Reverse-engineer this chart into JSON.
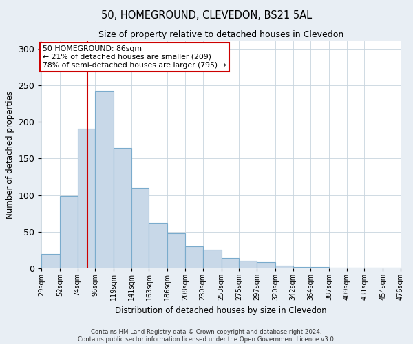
{
  "title": "50, HOMEGROUND, CLEVEDON, BS21 5AL",
  "subtitle": "Size of property relative to detached houses in Clevedon",
  "xlabel": "Distribution of detached houses by size in Clevedon",
  "ylabel": "Number of detached properties",
  "bar_values": [
    20,
    99,
    191,
    242,
    164,
    110,
    62,
    48,
    30,
    25,
    14,
    10,
    8,
    4,
    2,
    2,
    1,
    1,
    1,
    1
  ],
  "bin_edges": [
    29,
    52,
    74,
    96,
    119,
    141,
    163,
    186,
    208,
    230,
    253,
    275,
    297,
    320,
    342,
    364,
    387,
    409,
    431,
    454,
    476
  ],
  "bin_labels": [
    "29sqm",
    "52sqm",
    "74sqm",
    "96sqm",
    "119sqm",
    "141sqm",
    "163sqm",
    "186sqm",
    "208sqm",
    "230sqm",
    "253sqm",
    "275sqm",
    "297sqm",
    "320sqm",
    "342sqm",
    "364sqm",
    "387sqm",
    "409sqm",
    "431sqm",
    "454sqm",
    "476sqm"
  ],
  "bar_color": "#c8d8e8",
  "bar_edge_color": "#7aabcc",
  "vline_x": 86,
  "vline_color": "#cc0000",
  "annotation_title": "50 HOMEGROUND: 86sqm",
  "annotation_line1": "← 21% of detached houses are smaller (209)",
  "annotation_line2": "78% of semi-detached houses are larger (795) →",
  "annotation_box_edgecolor": "#cc0000",
  "ylim": [
    0,
    310
  ],
  "yticks": [
    0,
    50,
    100,
    150,
    200,
    250,
    300
  ],
  "footnote1": "Contains HM Land Registry data © Crown copyright and database right 2024.",
  "footnote2": "Contains public sector information licensed under the Open Government Licence v3.0.",
  "background_color": "#e8eef4",
  "plot_background": "#ffffff",
  "grid_color": "#c8d4de"
}
